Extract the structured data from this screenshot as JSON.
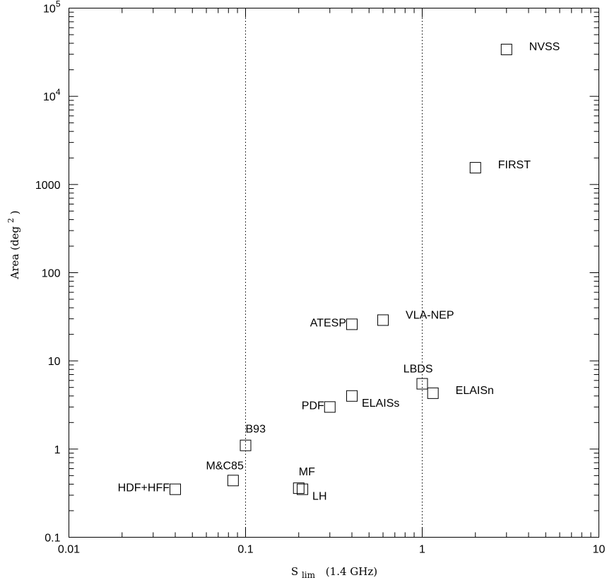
{
  "chart_data": {
    "type": "scatter",
    "x_scale": "log",
    "y_scale": "log",
    "xlim": [
      0.01,
      10
    ],
    "ylim": [
      0.1,
      100000
    ],
    "xlabel": "S",
    "xlabel_sub": "lim",
    "xlabel_tail": "(1.4 GHz)",
    "ylabel": "Area (deg",
    "ylabel_sup": "2",
    "ylabel_tail": ")",
    "x_ticks": [
      {
        "value": 0.01,
        "label": "0.01"
      },
      {
        "value": 0.1,
        "label": "0.1"
      },
      {
        "value": 1,
        "label": "1"
      },
      {
        "value": 10,
        "label": "10"
      }
    ],
    "y_ticks": [
      {
        "value": 0.1,
        "label": "0.1"
      },
      {
        "value": 1,
        "label": "1"
      },
      {
        "value": 10,
        "label": "10"
      },
      {
        "value": 100,
        "label": "100"
      },
      {
        "value": 1000,
        "label": "1000"
      },
      {
        "value": 10000,
        "label": "10",
        "sup": "4"
      },
      {
        "value": 100000,
        "label": "10",
        "sup": "5"
      }
    ],
    "reference_lines_x": [
      0.1,
      1
    ],
    "marker": "open-square",
    "points": [
      {
        "label": "NVSS",
        "x": 3,
        "y": 34000,
        "label_pos": "right"
      },
      {
        "label": "FIRST",
        "x": 2,
        "y": 1550,
        "label_pos": "right"
      },
      {
        "label": "VLA-NEP",
        "x": 0.6,
        "y": 29,
        "label_pos": "right-up"
      },
      {
        "label": "ATESP",
        "x": 0.4,
        "y": 26,
        "label_pos": "left"
      },
      {
        "label": "LBDS",
        "x": 1,
        "y": 5.5,
        "label_pos": "above-left"
      },
      {
        "label": "ELAISn",
        "x": 1.15,
        "y": 4.3,
        "label_pos": "right"
      },
      {
        "label": "ELAISs",
        "x": 0.4,
        "y": 4,
        "label_pos": "right-below"
      },
      {
        "label": "PDF",
        "x": 0.3,
        "y": 3,
        "label_pos": "left"
      },
      {
        "label": "B93",
        "x": 0.1,
        "y": 1.1,
        "label_pos": "above-right"
      },
      {
        "label": "M&C85",
        "x": 0.085,
        "y": 0.44,
        "label_pos": "above-left"
      },
      {
        "label": "MF",
        "x": 0.2,
        "y": 0.36,
        "label_pos": "above-right"
      },
      {
        "label": "LH",
        "x": 0.21,
        "y": 0.35,
        "label_pos": "right-below"
      },
      {
        "label": "HDF+HFF",
        "x": 0.04,
        "y": 0.35,
        "label_pos": "left"
      }
    ],
    "grid": false,
    "legend": "none"
  }
}
